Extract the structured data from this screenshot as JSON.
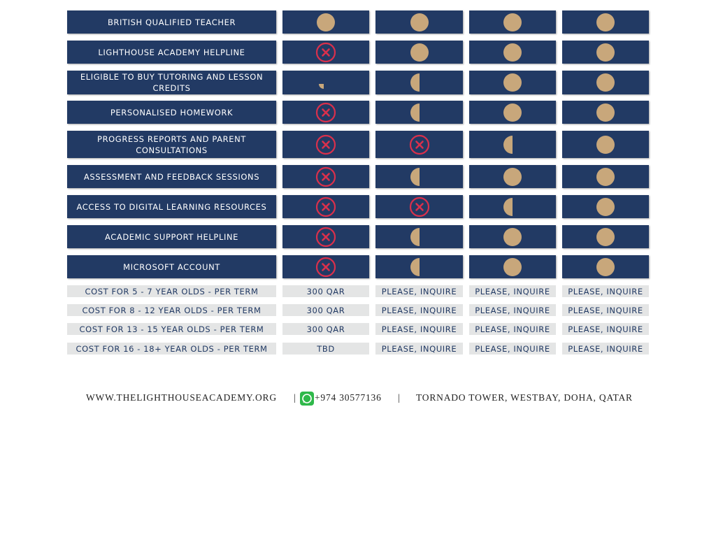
{
  "table": {
    "features": [
      "BRITISH QUALIFIED TEACHER",
      "LIGHTHOUSE ACADEMY HELPLINE",
      "ELIGIBLE TO BUY TUTORING AND LESSON CREDITS",
      "PERSONALISED HOMEWORK",
      "PROGRESS REPORTS AND PARENT CONSULTATIONS",
      "ASSESSMENT AND FEEDBACK SESSIONS",
      "ACCESS TO DIGITAL LEARNING RESOURCES",
      "ACADEMIC SUPPORT HELPLINE",
      "MICROSOFT ACCOUNT"
    ],
    "costs": [
      [
        "COST FOR 5 - 7 YEAR OLDS - PER TERM",
        "300 QAR",
        "PLEASE, INQUIRE",
        "PLEASE, INQUIRE",
        "PLEASE, INQUIRE"
      ],
      [
        "COST FOR 8 - 12 YEAR OLDS - PER TERM",
        "300 QAR",
        "PLEASE, INQUIRE",
        "PLEASE, INQUIRE",
        "PLEASE, INQUIRE"
      ],
      [
        "COST FOR 13 - 15 YEAR OLDS - PER TERM",
        "300 QAR",
        "PLEASE, INQUIRE",
        "PLEASE, INQUIRE",
        "PLEASE, INQUIRE"
      ],
      [
        "COST FOR 16 - 18+ YEAR OLDS - PER TERM",
        "TBD",
        "PLEASE, INQUIRE",
        "PLEASE, INQUIRE",
        "PLEASE, INQUIRE"
      ]
    ]
  },
  "footer": {
    "website": "WWW.THELIGHTHOUSEACADEMY.ORG",
    "separator": "|",
    "phone": "+974 30577136",
    "address": "TORNADO TOWER, WESTBAY, DOHA, QATAR"
  }
}
